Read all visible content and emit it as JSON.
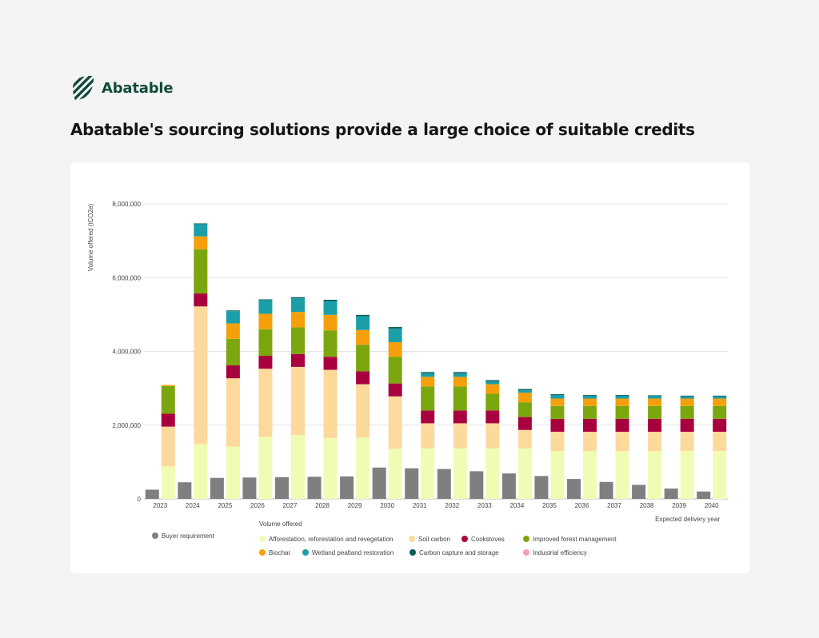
{
  "brand": {
    "name": "Abatable",
    "logo_icon": "striped-leaf-logo",
    "color": "#0f4a3c"
  },
  "headline": "Abatable's sourcing solutions provide a large choice of suitable credits",
  "chart_data": {
    "type": "bar",
    "stacked": true,
    "title": "",
    "ylabel": "Volume offered (tCO2e)",
    "xlabel": "Expected delivery year",
    "ylim": [
      0,
      8000000
    ],
    "yticks": [
      0,
      2000000,
      4000000,
      6000000,
      8000000
    ],
    "ytick_labels": [
      "0",
      "2,000,000",
      "4,000,000",
      "6,000,000",
      "8,000,000"
    ],
    "grid": true,
    "categories": [
      "2023",
      "2024",
      "2025",
      "2026",
      "2027",
      "2028",
      "2029",
      "2030",
      "2031",
      "2032",
      "2033",
      "2034",
      "2035",
      "2036",
      "2037",
      "2038",
      "2039",
      "2040"
    ],
    "buyer": {
      "name": "Buyer requirement",
      "color": "#7f7f7f",
      "values": [
        250000,
        450000,
        570000,
        580000,
        590000,
        600000,
        610000,
        850000,
        830000,
        810000,
        750000,
        690000,
        620000,
        540000,
        460000,
        380000,
        280000,
        200000
      ]
    },
    "offered_group_label": "Volume offered",
    "series": [
      {
        "name": "Afforestation, reforestation and revegetation",
        "color": "#f0fcb4",
        "values": [
          880000,
          1480000,
          1420000,
          1680000,
          1730000,
          1650000,
          1660000,
          1360000,
          1370000,
          1370000,
          1370000,
          1370000,
          1300000,
          1300000,
          1300000,
          1300000,
          1300000,
          1300000
        ]
      },
      {
        "name": "Soil carbon",
        "color": "#fdd99c",
        "values": [
          1080000,
          3740000,
          1850000,
          1850000,
          1850000,
          1850000,
          1450000,
          1420000,
          680000,
          680000,
          680000,
          500000,
          520000,
          520000,
          520000,
          520000,
          520000,
          520000
        ]
      },
      {
        "name": "Cookstoves",
        "color": "#a8003e",
        "values": [
          350000,
          350000,
          350000,
          350000,
          350000,
          350000,
          350000,
          350000,
          350000,
          350000,
          350000,
          350000,
          350000,
          350000,
          350000,
          350000,
          350000,
          350000
        ]
      },
      {
        "name": "Improved forest management",
        "color": "#7ca60e",
        "values": [
          750000,
          1200000,
          720000,
          720000,
          720000,
          720000,
          720000,
          720000,
          650000,
          650000,
          450000,
          400000,
          350000,
          350000,
          350000,
          350000,
          350000,
          350000
        ]
      },
      {
        "name": "Biochar",
        "color": "#f5a00a",
        "values": [
          30000,
          350000,
          420000,
          420000,
          420000,
          420000,
          400000,
          400000,
          260000,
          260000,
          260000,
          260000,
          200000,
          200000,
          200000,
          200000,
          200000,
          200000
        ]
      },
      {
        "name": "Wetland peatland restoration",
        "color": "#1a9fa9",
        "values": [
          0,
          330000,
          330000,
          370000,
          370000,
          370000,
          370000,
          370000,
          100000,
          100000,
          80000,
          70000,
          100000,
          80000,
          80000,
          70000,
          60000,
          60000
        ]
      },
      {
        "name": "Carbon capture and storage",
        "color": "#0b5d56",
        "values": [
          0,
          20000,
          20000,
          20000,
          30000,
          40000,
          40000,
          40000,
          30000,
          30000,
          30000,
          30000,
          20000,
          20000,
          20000,
          20000,
          20000,
          20000
        ]
      },
      {
        "name": "Industrial efficiency",
        "color": "#f49bc4",
        "values": [
          0,
          0,
          0,
          0,
          0,
          0,
          0,
          0,
          0,
          0,
          0,
          0,
          0,
          0,
          0,
          0,
          0,
          0
        ]
      }
    ],
    "legend_position": "bottom"
  }
}
